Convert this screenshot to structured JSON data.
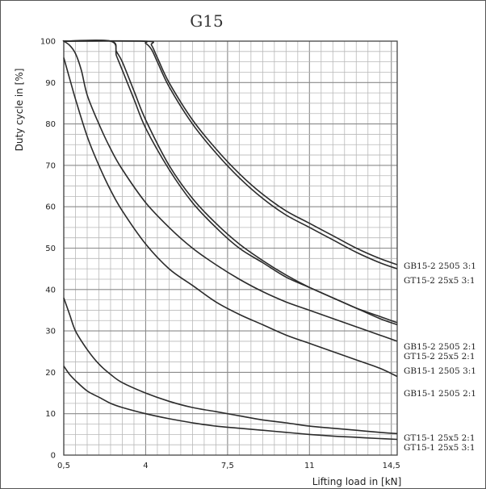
{
  "chart_data": {
    "type": "line",
    "title": "G15",
    "xlabel": "Lifting load in [kN]",
    "ylabel": "Duty cycle in [%]",
    "xlim": [
      0.5,
      14.75
    ],
    "ylim": [
      0,
      100
    ],
    "x_ticks": [
      0.5,
      4,
      7.5,
      11,
      14.5
    ],
    "x_tick_labels": [
      "0,5",
      "4",
      "7,5",
      "11",
      "14,5"
    ],
    "y_ticks": [
      0,
      10,
      20,
      30,
      40,
      50,
      60,
      70,
      80,
      90,
      100
    ],
    "grid": true,
    "series": [
      {
        "name": "GB15-2 2505 3:1",
        "x": [
          4.0,
          4.25,
          4.5,
          5,
          6,
          7,
          8,
          9,
          10,
          11,
          12,
          13,
          14,
          14.75
        ],
        "y": [
          100,
          99,
          96,
          90,
          81,
          74,
          68,
          63,
          59,
          56,
          53,
          50,
          47.5,
          46
        ]
      },
      {
        "name": "GT15-2 25x5 3:1",
        "x": [
          3.75,
          4.0,
          4.25,
          4.5,
          5,
          6,
          7,
          8,
          9,
          10,
          11,
          12,
          13,
          14,
          14.75
        ],
        "y": [
          100,
          99.5,
          98,
          95,
          89,
          80,
          73,
          67,
          62,
          58,
          55,
          52,
          49,
          46.5,
          45
        ]
      },
      {
        "name": "GB15-2 2505 2:1",
        "x": [
          2.5,
          2.75,
          3,
          3.5,
          4,
          5,
          6,
          7,
          8,
          9,
          10,
          11,
          12,
          13,
          14,
          14.75
        ],
        "y": [
          100,
          97.5,
          95,
          88,
          81,
          70,
          62,
          56,
          51,
          47,
          43.5,
          40.5,
          38,
          35.5,
          33.5,
          32
        ]
      },
      {
        "name": "GT15-2 25x5 2:1",
        "x": [
          2.5,
          2.75,
          3,
          3.5,
          4,
          5,
          6,
          7,
          8,
          9,
          10,
          11,
          12,
          13,
          14,
          14.75
        ],
        "y": [
          100,
          96.5,
          93,
          86,
          79,
          69,
          61,
          55,
          50,
          46.5,
          43,
          40.5,
          38,
          35.5,
          33,
          31.5
        ]
      },
      {
        "name": "GB15-1 2505 3:1",
        "x": [
          0.5,
          0.75,
          1,
          1.25,
          1.5,
          2,
          2.5,
          3,
          4,
          5,
          6,
          7,
          8,
          9,
          10,
          11,
          12,
          13,
          14,
          14.75
        ],
        "y": [
          100,
          99,
          97,
          93,
          87,
          80,
          74,
          69,
          61,
          55,
          50,
          46,
          42.5,
          39.5,
          37,
          35,
          33,
          31,
          29,
          27.5
        ]
      },
      {
        "name": "GB15-1 2505 2:1",
        "x": [
          0.5,
          0.75,
          1,
          1.5,
          2,
          2.5,
          3,
          4,
          5,
          6,
          7,
          8,
          9,
          10,
          11,
          12,
          13,
          14,
          14.75
        ],
        "y": [
          96,
          91,
          86,
          77,
          70,
          64,
          59,
          51,
          45,
          41,
          37,
          34,
          31.5,
          29,
          27,
          25,
          23,
          21,
          19
        ]
      },
      {
        "name": "GT15-1 25x5 2:1",
        "x": [
          0.5,
          0.75,
          1,
          1.5,
          2,
          2.5,
          3,
          4,
          5,
          6,
          7,
          8,
          9,
          10,
          11,
          12,
          13,
          14,
          14.75
        ],
        "y": [
          38,
          34,
          30,
          25.5,
          22,
          19.5,
          17.5,
          15,
          13,
          11.5,
          10.5,
          9.5,
          8.5,
          7.8,
          7,
          6.5,
          6,
          5.5,
          5.2
        ]
      },
      {
        "name": "GT15-1 25x5 3:1",
        "x": [
          0.5,
          0.75,
          1,
          1.5,
          2,
          2.5,
          3,
          4,
          5,
          6,
          7,
          8,
          9,
          10,
          11,
          12,
          13,
          14,
          14.75
        ],
        "y": [
          21.5,
          19.5,
          18,
          15.5,
          14,
          12.5,
          11.5,
          10,
          8.8,
          7.8,
          7,
          6.5,
          6,
          5.5,
          5,
          4.6,
          4.3,
          4,
          3.8
        ]
      }
    ],
    "legend_placement": "right, next to curve ends"
  }
}
